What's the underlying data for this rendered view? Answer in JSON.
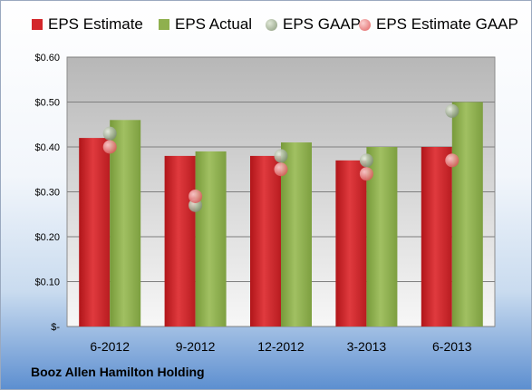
{
  "colors": {
    "eps_estimate": "#d3262a",
    "eps_actual": "#8fb04e",
    "eps_gaap": "#9aab8e",
    "eps_estimate_gaap": "#e87474"
  },
  "company": "Booz Allen Hamilton Holding",
  "chart_data": {
    "type": "bar",
    "categories": [
      "6-2012",
      "9-2012",
      "12-2012",
      "3-2013",
      "6-2013"
    ],
    "series": [
      {
        "name": "EPS Estimate",
        "type": "bar",
        "values": [
          0.42,
          0.38,
          0.38,
          0.37,
          0.4
        ]
      },
      {
        "name": "EPS Actual",
        "type": "bar",
        "values": [
          0.46,
          0.39,
          0.41,
          0.4,
          0.5
        ]
      },
      {
        "name": "EPS GAAP",
        "type": "scatter",
        "values": [
          0.43,
          0.27,
          0.38,
          0.37,
          0.48
        ]
      },
      {
        "name": "EPS Estimate GAAP",
        "type": "scatter",
        "values": [
          0.4,
          0.29,
          0.35,
          0.34,
          0.37
        ]
      }
    ],
    "ylim": [
      0,
      0.6
    ],
    "yticks": [
      0,
      0.1,
      0.2,
      0.3,
      0.4,
      0.5,
      0.6
    ],
    "ytick_labels": [
      "$-",
      "$0.10",
      "$0.20",
      "$0.30",
      "$0.40",
      "$0.50",
      "$0.60"
    ],
    "grid": true,
    "legend_position": "top"
  }
}
